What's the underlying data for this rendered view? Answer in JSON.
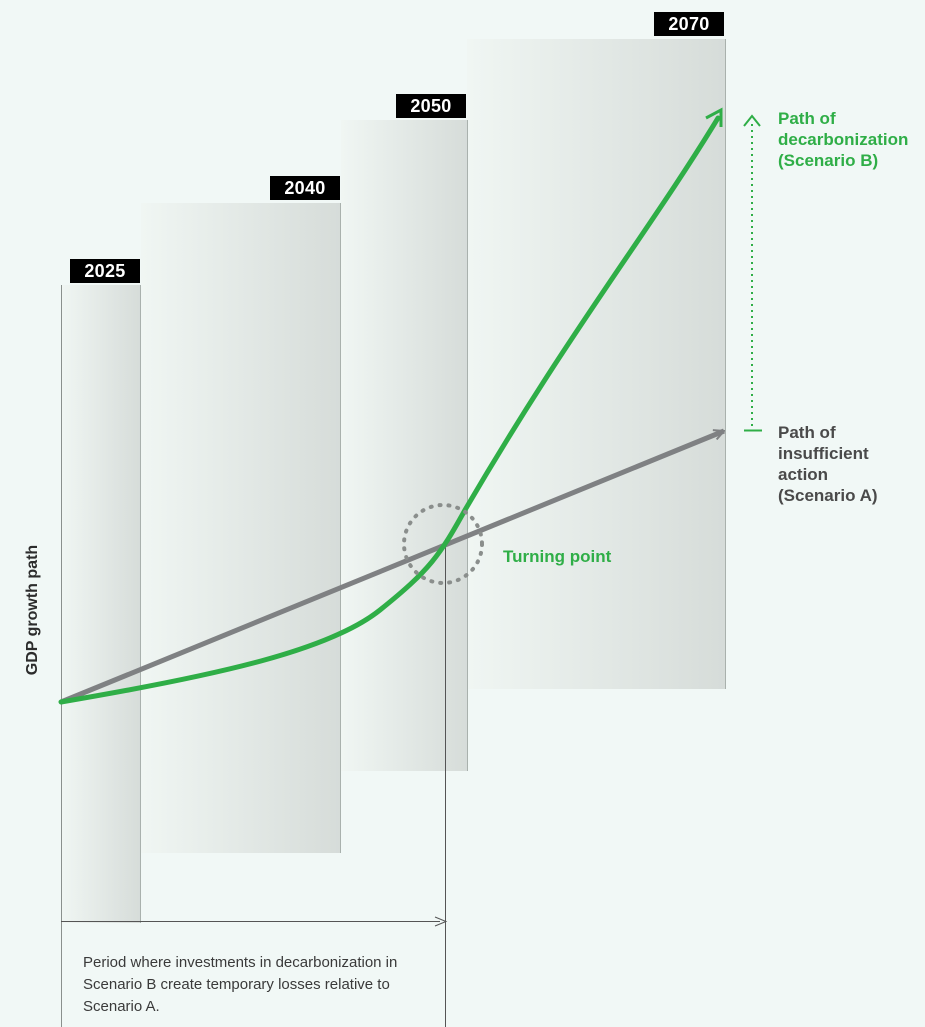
{
  "diagram": {
    "years": [
      "2025",
      "2040",
      "2050",
      "2070"
    ],
    "y_axis_label": "GDP growth path",
    "scenario_b_label": "Path of\ndecarbonization\n(Scenario B)",
    "scenario_a_label": "Path of\ninsufficient\naction\n(Scenario A)",
    "turning_point_label": "Turning point",
    "period_note": "Period where investments in decarbonization in Scenario B create temporary losses relative to Scenario A."
  },
  "colors": {
    "background": "#f1f8f6",
    "scenario_b": "#2fae47",
    "scenario_a": "#7f8183",
    "tag_background": "#000000",
    "panel_dark": "#d6dcd9",
    "panel_light": "#f0f6f3"
  }
}
